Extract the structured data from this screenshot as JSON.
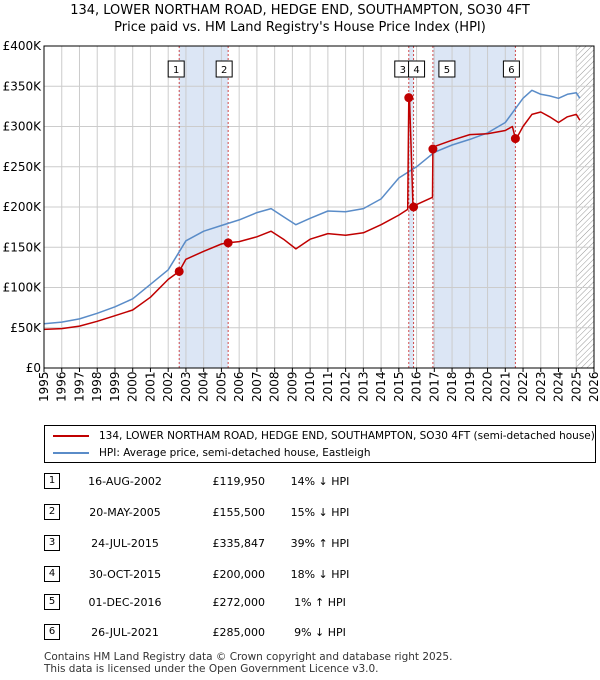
{
  "title": {
    "line1": "134, LOWER NORTHAM ROAD, HEDGE END, SOUTHAMPTON, SO30 4FT",
    "line2": "Price paid vs. HM Land Registry's House Price Index (HPI)"
  },
  "colors": {
    "property": "#c00000",
    "hpi": "#5a8cc8",
    "shade": "#dce6f5",
    "grid": "#cccccc"
  },
  "chart_data": {
    "type": "line",
    "xlim": [
      1995,
      2026
    ],
    "ylim": [
      0,
      400000
    ],
    "x_ticks": [
      "1995",
      "1996",
      "1997",
      "1998",
      "1999",
      "2000",
      "2001",
      "2002",
      "2003",
      "2004",
      "2005",
      "2006",
      "2007",
      "2008",
      "2009",
      "2010",
      "2011",
      "2012",
      "2013",
      "2014",
      "2015",
      "2016",
      "2017",
      "2018",
      "2019",
      "2020",
      "2021",
      "2022",
      "2023",
      "2024",
      "2025",
      "2026"
    ],
    "y_ticks": [
      {
        "value": 0,
        "label": "£0"
      },
      {
        "value": 50000,
        "label": "£50K"
      },
      {
        "value": 100000,
        "label": "£100K"
      },
      {
        "value": 150000,
        "label": "£150K"
      },
      {
        "value": 200000,
        "label": "£200K"
      },
      {
        "value": 250000,
        "label": "£250K"
      },
      {
        "value": 300000,
        "label": "£300K"
      },
      {
        "value": 350000,
        "label": "£350K"
      },
      {
        "value": 400000,
        "label": "£400K"
      }
    ],
    "grid": true,
    "shaded_ranges": [
      [
        2002.62,
        2005.38
      ],
      [
        2015.56,
        2015.83
      ],
      [
        2016.92,
        2021.57
      ]
    ],
    "hatched_from": 2025.0,
    "series": [
      {
        "name": "134, LOWER NORTHAM ROAD, HEDGE END, SOUTHAMPTON, SO30 4FT (semi-detached house)",
        "color": "#c00000",
        "x": [
          1995.0,
          1996.0,
          1997.0,
          1998.0,
          1999.0,
          2000.0,
          2001.0,
          2002.0,
          2002.62,
          2003.0,
          2004.0,
          2005.0,
          2005.38,
          2006.0,
          2007.0,
          2007.8,
          2008.5,
          2009.2,
          2010.0,
          2011.0,
          2012.0,
          2013.0,
          2014.0,
          2015.0,
          2015.5,
          2015.56,
          2015.6,
          2015.8,
          2015.83,
          2016.0,
          2016.9,
          2016.92,
          2017.0,
          2018.0,
          2019.0,
          2020.0,
          2021.0,
          2021.4,
          2021.57,
          2021.7,
          2022.0,
          2022.5,
          2023.0,
          2023.5,
          2024.0,
          2024.5,
          2025.0,
          2025.2
        ],
        "y": [
          48000,
          49000,
          52000,
          58000,
          65000,
          72000,
          88000,
          110000,
          119950,
          135000,
          145000,
          154000,
          155500,
          157000,
          163000,
          170000,
          160000,
          148000,
          160000,
          167000,
          165000,
          168000,
          178000,
          190000,
          197000,
          335847,
          335847,
          200000,
          200000,
          203000,
          212000,
          272000,
          275000,
          283000,
          290000,
          291000,
          295000,
          300000,
          285000,
          288000,
          300000,
          315000,
          318000,
          312000,
          305000,
          312000,
          315000,
          308000
        ]
      },
      {
        "name": "HPI: Average price, semi-detached house, Eastleigh",
        "color": "#5a8cc8",
        "x": [
          1995.0,
          1996.0,
          1997.0,
          1998.0,
          1999.0,
          2000.0,
          2001.0,
          2002.0,
          2002.5,
          2003.0,
          2004.0,
          2005.0,
          2006.0,
          2007.0,
          2007.8,
          2008.5,
          2009.2,
          2010.0,
          2011.0,
          2012.0,
          2013.0,
          2014.0,
          2015.0,
          2016.0,
          2017.0,
          2018.0,
          2019.0,
          2020.0,
          2021.0,
          2022.0,
          2022.5,
          2023.0,
          2023.5,
          2024.0,
          2024.5,
          2025.0,
          2025.2
        ],
        "y": [
          55000,
          57000,
          61000,
          68000,
          76000,
          86000,
          104000,
          122000,
          140000,
          158000,
          170000,
          177000,
          184000,
          193000,
          198000,
          188000,
          178000,
          186000,
          195000,
          194000,
          198000,
          210000,
          236000,
          250000,
          268000,
          277000,
          284000,
          292000,
          305000,
          335000,
          345000,
          340000,
          338000,
          335000,
          340000,
          342000,
          335000
        ]
      }
    ],
    "markers": [
      {
        "n": "1",
        "x": 2002.62,
        "y": 119950
      },
      {
        "n": "2",
        "x": 2005.38,
        "y": 155500
      },
      {
        "n": "3",
        "x": 2015.56,
        "y": 335847
      },
      {
        "n": "4",
        "x": 2015.83,
        "y": 200000
      },
      {
        "n": "5",
        "x": 2016.92,
        "y": 272000
      },
      {
        "n": "6",
        "x": 2021.57,
        "y": 285000
      }
    ],
    "box_labels": [
      {
        "n": "1",
        "x": 2002.62
      },
      {
        "n": "2",
        "x": 2005.38
      },
      {
        "n": "3",
        "x": 2015.56
      },
      {
        "n": "4",
        "x": 2015.83
      },
      {
        "n": "5",
        "x": 2016.92
      },
      {
        "n": "6",
        "x": 2021.57
      }
    ]
  },
  "legend": {
    "property": "134, LOWER NORTHAM ROAD, HEDGE END, SOUTHAMPTON, SO30 4FT (semi-detached house)",
    "hpi": "HPI: Average price, semi-detached house, Eastleigh"
  },
  "transactions": [
    {
      "n": "1",
      "date": "16-AUG-2002",
      "price": "£119,950",
      "diff": "14% ↓ HPI"
    },
    {
      "n": "2",
      "date": "20-MAY-2005",
      "price": "£155,500",
      "diff": "15% ↓ HPI"
    },
    {
      "n": "3",
      "date": "24-JUL-2015",
      "price": "£335,847",
      "diff": "39% ↑ HPI"
    },
    {
      "n": "4",
      "date": "30-OCT-2015",
      "price": "£200,000",
      "diff": "18% ↓ HPI"
    },
    {
      "n": "5",
      "date": "01-DEC-2016",
      "price": "£272,000",
      "diff": "1% ↑ HPI"
    },
    {
      "n": "6",
      "date": "26-JUL-2021",
      "price": "£285,000",
      "diff": "9% ↓ HPI"
    }
  ],
  "footer": {
    "line1": "Contains HM Land Registry data © Crown copyright and database right 2025.",
    "line2": "This data is licensed under the Open Government Licence v3.0."
  }
}
